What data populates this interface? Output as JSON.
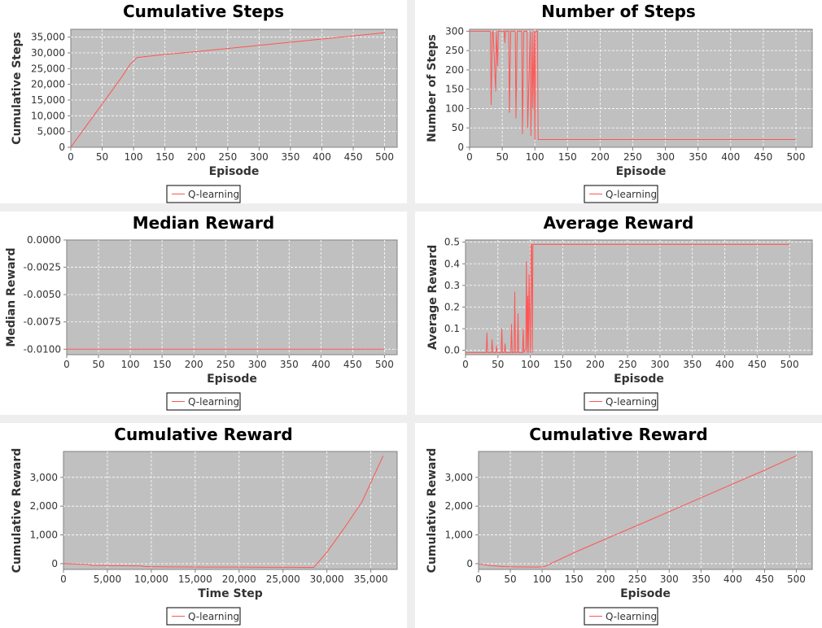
{
  "chart_data": [
    {
      "type": "line",
      "title": "Cumulative Steps",
      "xlabel": "Episode",
      "ylabel": "Cumulative Steps",
      "xlim": [
        0,
        520
      ],
      "ylim": [
        0,
        37500
      ],
      "xticks": [
        0,
        50,
        100,
        150,
        200,
        250,
        300,
        350,
        400,
        450,
        500
      ],
      "yticks": [
        0,
        5000,
        10000,
        15000,
        20000,
        25000,
        30000,
        35000
      ],
      "ytick_labels": [
        "0",
        "5,000",
        "10,000",
        "15,000",
        "20,000",
        "25,000",
        "30,000",
        "35,000"
      ],
      "grid": true,
      "legend": "bottom-center",
      "series": [
        {
          "name": "Q-learning",
          "color": "#ff5555",
          "x": [
            0,
            20,
            40,
            60,
            80,
            95,
            100,
            105,
            150,
            200,
            250,
            300,
            350,
            400,
            450,
            500
          ],
          "y": [
            0,
            5500,
            11000,
            16500,
            22000,
            26500,
            27300,
            28500,
            29500,
            30400,
            31400,
            32400,
            33400,
            34400,
            35400,
            36400
          ]
        }
      ]
    },
    {
      "type": "line",
      "title": "Number of Steps",
      "xlabel": "Episode",
      "ylabel": "Number of Steps",
      "xlim": [
        0,
        525
      ],
      "ylim": [
        0,
        305
      ],
      "xticks": [
        0,
        50,
        100,
        150,
        200,
        250,
        300,
        350,
        400,
        450,
        500
      ],
      "yticks": [
        0,
        50,
        100,
        150,
        200,
        250,
        300
      ],
      "ytick_labels": [
        "0",
        "50",
        "100",
        "150",
        "200",
        "250",
        "300"
      ],
      "grid": true,
      "legend": "bottom-center",
      "series": [
        {
          "name": "Q-learning",
          "color": "#ff5555",
          "x": [
            0,
            32,
            33,
            35,
            36,
            40,
            41,
            43,
            44,
            47,
            48,
            53,
            54,
            55,
            56,
            60,
            61,
            63,
            64,
            70,
            71,
            73,
            74,
            80,
            81,
            83,
            84,
            88,
            89,
            93,
            94,
            96,
            97,
            99,
            100,
            101,
            102,
            103,
            104,
            105,
            500
          ],
          "y": [
            300,
            300,
            110,
            300,
            300,
            145,
            300,
            210,
            300,
            300,
            300,
            300,
            270,
            300,
            300,
            300,
            90,
            300,
            300,
            300,
            75,
            300,
            300,
            300,
            35,
            300,
            300,
            300,
            50,
            300,
            30,
            300,
            100,
            300,
            20,
            300,
            300,
            300,
            300,
            20,
            20
          ]
        }
      ]
    },
    {
      "type": "line",
      "title": "Median Reward",
      "xlabel": "Episode",
      "ylabel": "Median Reward",
      "xlim": [
        0,
        520
      ],
      "ylim": [
        -0.0105,
        0.0
      ],
      "xticks": [
        0,
        50,
        100,
        150,
        200,
        250,
        300,
        350,
        400,
        450,
        500
      ],
      "yticks": [
        0.0,
        -0.0025,
        -0.005,
        -0.0075,
        -0.01
      ],
      "ytick_labels": [
        "0.0000",
        "-0.0025",
        "-0.0050",
        "-0.0075",
        "-0.0100"
      ],
      "grid": true,
      "legend": "bottom-center",
      "series": [
        {
          "name": "Q-learning",
          "color": "#ff5555",
          "x": [
            0,
            500
          ],
          "y": [
            -0.01,
            -0.01
          ]
        }
      ]
    },
    {
      "type": "line",
      "title": "Average Reward",
      "xlabel": "Episode",
      "ylabel": "Average Reward",
      "xlim": [
        0,
        535
      ],
      "ylim": [
        -0.02,
        0.51
      ],
      "xticks": [
        0,
        50,
        100,
        150,
        200,
        250,
        300,
        350,
        400,
        450,
        500
      ],
      "yticks": [
        0.0,
        0.1,
        0.2,
        0.3,
        0.4,
        0.5
      ],
      "ytick_labels": [
        "0.0",
        "0.1",
        "0.2",
        "0.3",
        "0.4",
        "0.5"
      ],
      "grid": true,
      "legend": "bottom-center",
      "series": [
        {
          "name": "Q-learning",
          "color": "#ff5555",
          "x": [
            0,
            32,
            33,
            34,
            40,
            41,
            42,
            47,
            48,
            49,
            55,
            56,
            57,
            60,
            61,
            62,
            70,
            71,
            72,
            75,
            76,
            77,
            80,
            81,
            82,
            88,
            89,
            90,
            93,
            94,
            95,
            96,
            97,
            98,
            100,
            101,
            102,
            103,
            104,
            105,
            500
          ],
          "y": [
            -0.01,
            -0.01,
            0.08,
            -0.01,
            -0.01,
            0.05,
            -0.01,
            -0.01,
            0.02,
            -0.01,
            -0.01,
            0.1,
            -0.01,
            -0.01,
            0.03,
            -0.01,
            -0.01,
            0.12,
            -0.01,
            -0.01,
            0.27,
            -0.01,
            -0.01,
            0.17,
            -0.01,
            -0.01,
            0.1,
            -0.01,
            0.01,
            0.41,
            -0.01,
            0.25,
            -0.01,
            0.35,
            -0.01,
            0.49,
            0.49,
            -0.01,
            0.49,
            0.49,
            0.49
          ]
        }
      ]
    },
    {
      "type": "line",
      "title": "Cumulative Reward",
      "xlabel": "Time Step",
      "ylabel": "Cumulative Reward",
      "xlim": [
        0,
        38000
      ],
      "ylim": [
        -200,
        3900
      ],
      "xticks": [
        0,
        5000,
        10000,
        15000,
        20000,
        25000,
        30000,
        35000
      ],
      "xtick_labels": [
        "0",
        "5,000",
        "10,000",
        "15,000",
        "20,000",
        "25,000",
        "30,000",
        "35,000"
      ],
      "yticks": [
        0,
        1000,
        2000,
        3000
      ],
      "ytick_labels": [
        "0",
        "1,000",
        "2,000",
        "3,000"
      ],
      "grid": true,
      "legend": "bottom-center",
      "series": [
        {
          "name": "Q-learning",
          "color": "#ff5555",
          "x": [
            0,
            3000,
            3100,
            9000,
            9100,
            12000,
            15000,
            17000,
            20000,
            23000,
            26000,
            28500,
            30000,
            32000,
            34000,
            36400
          ],
          "y": [
            0,
            -30,
            -60,
            -80,
            -100,
            -110,
            -115,
            -120,
            -120,
            -125,
            -125,
            -130,
            400,
            1250,
            2150,
            3750
          ]
        }
      ]
    },
    {
      "type": "line",
      "title": "Cumulative Reward",
      "xlabel": "Episode",
      "ylabel": "Cumulative Reward",
      "xlim": [
        0,
        525
      ],
      "ylim": [
        -200,
        3900
      ],
      "xticks": [
        0,
        50,
        100,
        150,
        200,
        250,
        300,
        350,
        400,
        450,
        500
      ],
      "yticks": [
        0,
        1000,
        2000,
        3000
      ],
      "ytick_labels": [
        "0",
        "1,000",
        "2,000",
        "3,000"
      ],
      "grid": true,
      "legend": "bottom-center",
      "series": [
        {
          "name": "Q-learning",
          "color": "#ff5555",
          "x": [
            0,
            10,
            20,
            40,
            60,
            80,
            90,
            100,
            105,
            150,
            200,
            250,
            300,
            350,
            400,
            450,
            500
          ],
          "y": [
            0,
            -40,
            -70,
            -100,
            -110,
            -115,
            -120,
            -110,
            -90,
            380,
            860,
            1330,
            1810,
            2290,
            2770,
            3250,
            3750
          ]
        }
      ]
    }
  ]
}
